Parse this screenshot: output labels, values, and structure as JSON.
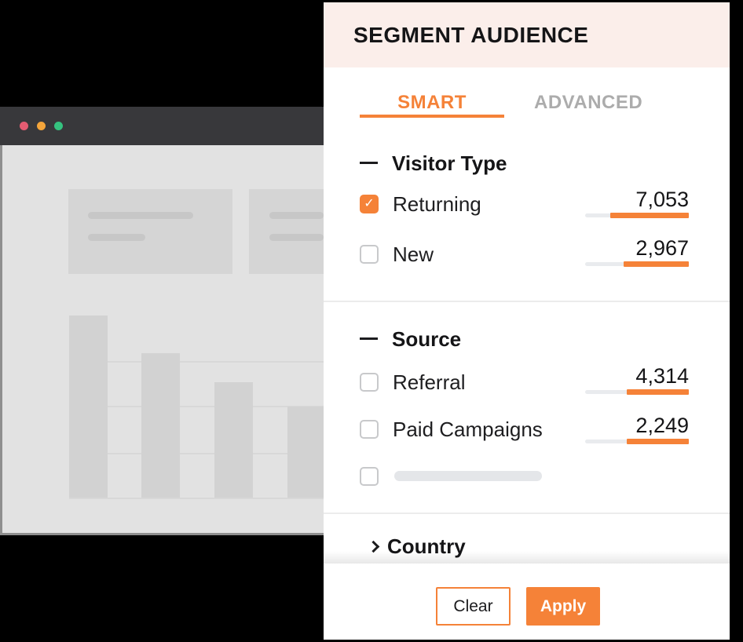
{
  "colors": {
    "accent_orange": "#F58238",
    "header_pink": "#FBEEEA",
    "titlebar_gray": "#38383B",
    "dot_red": "#E45C72",
    "dot_yellow": "#F4A53B",
    "dot_green": "#35C27F"
  },
  "panel": {
    "title": "SEGMENT AUDIENCE",
    "tabs": {
      "smart": "SMART",
      "advanced": "ADVANCED"
    },
    "visitor_type": {
      "title": "Visitor Type",
      "returning": {
        "label": "Returning",
        "value": "7,053",
        "checked": true,
        "fill_pct": 76
      },
      "new": {
        "label": "New",
        "value": "2,967",
        "checked": false,
        "fill_pct": 63
      }
    },
    "source": {
      "title": "Source",
      "referral": {
        "label": "Referral",
        "value": "4,314",
        "checked": false,
        "fill_pct": 60
      },
      "paid": {
        "label": "Paid Campaigns",
        "value": "2,249",
        "checked": false,
        "fill_pct": 60
      },
      "skeleton": {
        "checked": false
      }
    },
    "country": {
      "title": "Country"
    },
    "footer": {
      "clear": "Clear",
      "apply": "Apply"
    }
  }
}
